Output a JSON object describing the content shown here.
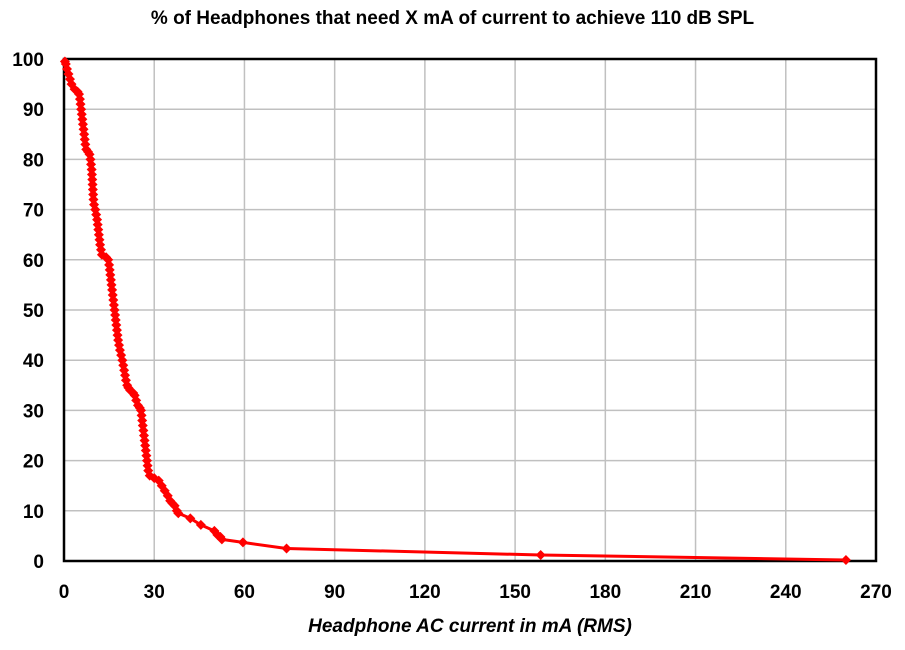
{
  "chart_data": {
    "type": "line",
    "title": "% of Headphones that need X mA of current to achieve 110 dB SPL",
    "xlabel": "Headphone AC current in mA (RMS)",
    "ylabel": "",
    "xlim": [
      0,
      270
    ],
    "ylim": [
      0,
      100
    ],
    "xticks": [
      0,
      30,
      60,
      90,
      120,
      150,
      180,
      210,
      240,
      270
    ],
    "yticks": [
      0,
      10,
      20,
      30,
      40,
      50,
      60,
      70,
      80,
      90,
      100
    ],
    "grid": true,
    "legend": "none",
    "series": [
      {
        "color": "#ff0000",
        "marker": "diamond",
        "points": [
          [
            0.3,
            99.5
          ],
          [
            0.6,
            99
          ],
          [
            1,
            98
          ],
          [
            1.5,
            97
          ],
          [
            2,
            96
          ],
          [
            2.5,
            95
          ],
          [
            3.5,
            94
          ],
          [
            4.5,
            93.5
          ],
          [
            5,
            93
          ],
          [
            5.3,
            92
          ],
          [
            5.5,
            91
          ],
          [
            5.7,
            90
          ],
          [
            5.9,
            89
          ],
          [
            6.1,
            88
          ],
          [
            6.3,
            87
          ],
          [
            6.5,
            86
          ],
          [
            6.7,
            85
          ],
          [
            6.9,
            84
          ],
          [
            7.1,
            83
          ],
          [
            7.4,
            82
          ],
          [
            8,
            81.5
          ],
          [
            8.5,
            81
          ],
          [
            8.8,
            80
          ],
          [
            9,
            79
          ],
          [
            9.2,
            78
          ],
          [
            9.3,
            77
          ],
          [
            9.4,
            76
          ],
          [
            9.5,
            75
          ],
          [
            9.6,
            74
          ],
          [
            9.7,
            73
          ],
          [
            9.8,
            72
          ],
          [
            10,
            71
          ],
          [
            10.4,
            70
          ],
          [
            10.7,
            69
          ],
          [
            11,
            68
          ],
          [
            11.2,
            67
          ],
          [
            11.4,
            66
          ],
          [
            11.6,
            65
          ],
          [
            11.8,
            64
          ],
          [
            12,
            63
          ],
          [
            12.3,
            62
          ],
          [
            12.6,
            61
          ],
          [
            14,
            60.5
          ],
          [
            14.7,
            60
          ],
          [
            15,
            59
          ],
          [
            15.2,
            58
          ],
          [
            15.4,
            57
          ],
          [
            15.6,
            56
          ],
          [
            15.8,
            55
          ],
          [
            16,
            54
          ],
          [
            16.2,
            53
          ],
          [
            16.4,
            52
          ],
          [
            16.6,
            51
          ],
          [
            16.8,
            50
          ],
          [
            17,
            49
          ],
          [
            17.2,
            48
          ],
          [
            17.4,
            47
          ],
          [
            17.6,
            46
          ],
          [
            17.8,
            45
          ],
          [
            18,
            44
          ],
          [
            18.3,
            43
          ],
          [
            18.6,
            42
          ],
          [
            19,
            41
          ],
          [
            19.4,
            40
          ],
          [
            19.7,
            39
          ],
          [
            20,
            38
          ],
          [
            20.3,
            37
          ],
          [
            20.6,
            36
          ],
          [
            21,
            35
          ],
          [
            21.4,
            34.5
          ],
          [
            22,
            34
          ],
          [
            23,
            33.5
          ],
          [
            23.5,
            33
          ],
          [
            24,
            32
          ],
          [
            24.6,
            31
          ],
          [
            25.2,
            30.5
          ],
          [
            25.6,
            30
          ],
          [
            25.8,
            29
          ],
          [
            26,
            28
          ],
          [
            26.2,
            27
          ],
          [
            26.4,
            26
          ],
          [
            26.6,
            25
          ],
          [
            26.8,
            24
          ],
          [
            27,
            23
          ],
          [
            27.2,
            22
          ],
          [
            27.4,
            21
          ],
          [
            27.6,
            20
          ],
          [
            27.8,
            19
          ],
          [
            28,
            18
          ],
          [
            28.5,
            17
          ],
          [
            30,
            16.5
          ],
          [
            31.5,
            16
          ],
          [
            32.5,
            15
          ],
          [
            33.5,
            14
          ],
          [
            34.5,
            13
          ],
          [
            35.3,
            12
          ],
          [
            36,
            11.5
          ],
          [
            36.8,
            11
          ],
          [
            37.5,
            10
          ],
          [
            38,
            9.5
          ],
          [
            42,
            8.5
          ],
          [
            45.5,
            7.2
          ],
          [
            50,
            6
          ],
          [
            51,
            5.2
          ],
          [
            52,
            4.8
          ],
          [
            52.5,
            4.3
          ],
          [
            59.5,
            3.7
          ],
          [
            74,
            2.5
          ],
          [
            158.5,
            1.2
          ],
          [
            260,
            0.2
          ]
        ]
      }
    ]
  }
}
